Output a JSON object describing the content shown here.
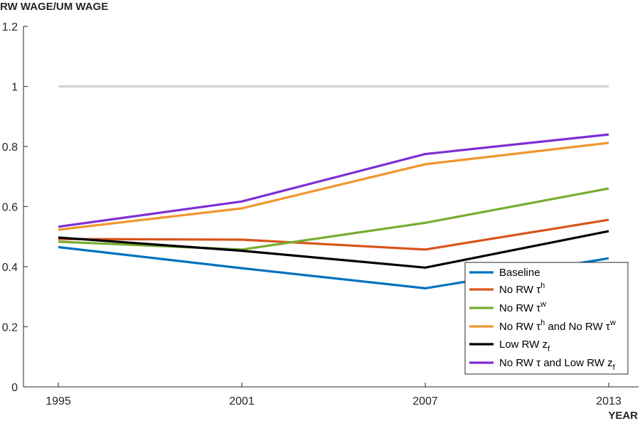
{
  "chart_data": {
    "type": "line",
    "ylabel": "RW WAGE/UM WAGE",
    "xlabel": "YEAR",
    "x": [
      1995,
      2001,
      2007,
      2013
    ],
    "x_tick_labels": [
      "1995",
      "2001",
      "2007",
      "2013"
    ],
    "ylim": [
      0,
      1.2
    ],
    "y_ticks": [
      0,
      0.2,
      0.4,
      0.6,
      0.8,
      1,
      1.2
    ],
    "y_tick_labels": [
      "0",
      "0.2",
      "0.4",
      "0.6",
      "0.8",
      "1",
      "1.2"
    ],
    "grid": false,
    "legend_position": "bottom-right",
    "reference_line": {
      "y": 1,
      "color": "#d3d3d3"
    },
    "series": [
      {
        "name": "Baseline",
        "color": "#0072bd",
        "values": [
          0.465,
          0.395,
          0.328,
          0.428
        ]
      },
      {
        "name": "No RW τʰ",
        "color": "#d95319",
        "values": [
          0.492,
          0.49,
          0.457,
          0.556
        ]
      },
      {
        "name": "No RW τʷ",
        "color": "#77ac30",
        "values": [
          0.483,
          0.457,
          0.546,
          0.66
        ]
      },
      {
        "name": "No RW τʰ and No RW τʷ",
        "color": "#f0962d",
        "values": [
          0.523,
          0.594,
          0.741,
          0.812
        ]
      },
      {
        "name": "Low RW z_f",
        "color": "#000000",
        "values": [
          0.497,
          0.453,
          0.397,
          0.518
        ]
      },
      {
        "name": "No RW τ and Low RW z_f",
        "color": "#7e2fd2",
        "values": [
          0.533,
          0.617,
          0.775,
          0.84
        ]
      }
    ]
  },
  "legend": {
    "items": [
      {
        "label": "Baseline"
      },
      {
        "pre": "No RW τ",
        "sup": "h"
      },
      {
        "pre": "No RW τ",
        "sup": "w"
      },
      {
        "pre": "No RW τ",
        "sup": "h",
        "mid": " and No RW τ",
        "sup2": "w"
      },
      {
        "pre": "Low RW z",
        "sub": "f"
      },
      {
        "pre": "No RW τ and Low RW z",
        "sub": "f"
      }
    ]
  }
}
